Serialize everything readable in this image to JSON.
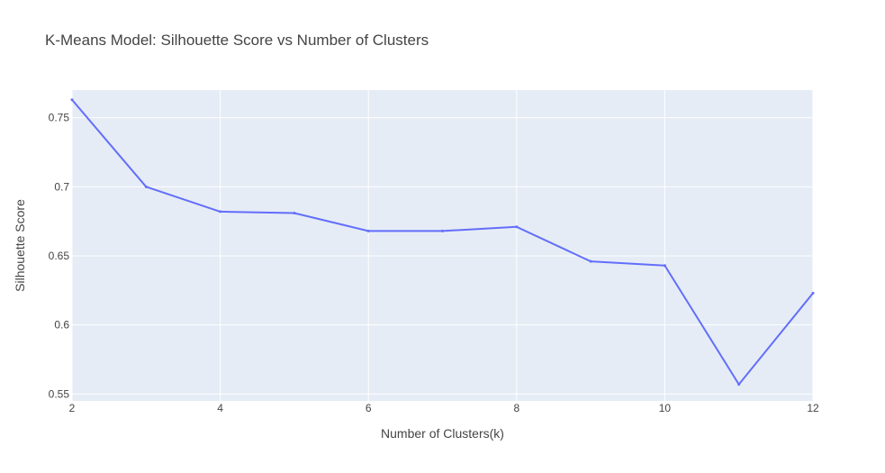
{
  "colors": {
    "plot_background": "#E5ECF6",
    "gridline": "#FFFFFF",
    "line": "#636EFA",
    "text": "#444444"
  },
  "chart_data": {
    "type": "line",
    "title": "K-Means Model: Silhouette Score vs Number of Clusters",
    "xlabel": "Number of Clusters(k)",
    "ylabel": "Silhouette Score",
    "xlim": [
      2,
      12
    ],
    "ylim": [
      0.545,
      0.77
    ],
    "x_ticks": [
      2,
      4,
      6,
      8,
      10,
      12
    ],
    "x_tick_labels": [
      "2",
      "4",
      "6",
      "8",
      "10",
      "12"
    ],
    "y_ticks": [
      0.55,
      0.6,
      0.65,
      0.7,
      0.75
    ],
    "y_tick_labels": [
      "0.55",
      "0.6",
      "0.65",
      "0.7",
      "0.75"
    ],
    "grid": true,
    "series": [
      {
        "x": [
          2,
          3,
          4,
          5,
          6,
          7,
          8,
          9,
          10,
          11,
          12
        ],
        "values": [
          0.763,
          0.7,
          0.682,
          0.681,
          0.668,
          0.668,
          0.671,
          0.646,
          0.643,
          0.557,
          0.623
        ]
      }
    ]
  }
}
